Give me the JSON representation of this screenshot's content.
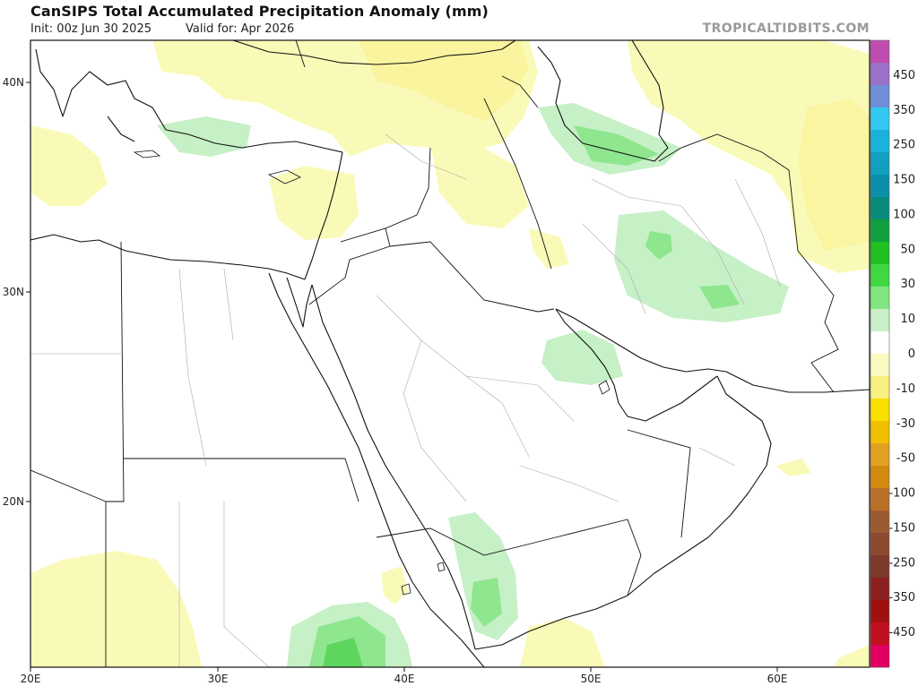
{
  "header": {
    "title": "CanSIPS Total Accumulated Precipitation Anomaly (mm)",
    "init": "Init: 00z Jun 30 2025",
    "valid": "Valid for: Apr 2026",
    "credit": "TROPICALTIDBITS.COM"
  },
  "axes": {
    "lat_labels": [
      "40N",
      "30N",
      "20N"
    ],
    "lon_labels": [
      "20E",
      "30E",
      "40E",
      "50E",
      "60E"
    ]
  },
  "colorbar": {
    "labels": [
      "450",
      "350",
      "250",
      "150",
      "100",
      "50",
      "30",
      "10",
      "0",
      "-10",
      "-30",
      "-50",
      "-100",
      "-150",
      "-250",
      "-350",
      "-450"
    ],
    "colors": [
      "#c04cb0",
      "#9a70c8",
      "#6f8ed8",
      "#33c8f0",
      "#1ab2d8",
      "#12a0c0",
      "#0c8fa8",
      "#0a8a7a",
      "#10a040",
      "#20c020",
      "#40d840",
      "#80e680",
      "#c8f0c8",
      "#ffffff",
      "#fafac0",
      "#f8f080",
      "#f8e000",
      "#f0c000",
      "#e0a020",
      "#d08a10",
      "#b87028",
      "#9c5a30",
      "#8c4a30",
      "#7c3a2a",
      "#8c2020",
      "#a01010",
      "#c01020",
      "#e00060"
    ]
  },
  "anomaly_colors": {
    "dry": "#fafab4",
    "wet_light": "#c8f0c8",
    "wet_mid": "#8ee68e"
  }
}
